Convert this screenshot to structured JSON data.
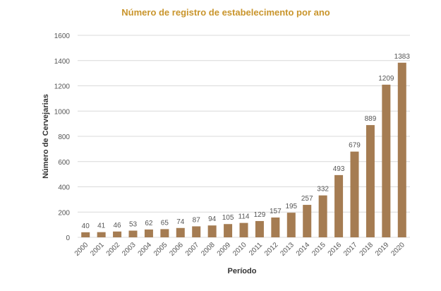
{
  "chart_data": {
    "type": "bar",
    "title": "Número de registro de estabelecimento por ano",
    "xlabel": "Período",
    "ylabel": "Número de Cervejarias",
    "ylim": [
      0,
      1600
    ],
    "yticks": [
      0,
      200,
      400,
      600,
      800,
      1000,
      1200,
      1400,
      1600
    ],
    "grid": true,
    "categories": [
      "2000",
      "2001",
      "2002",
      "2003",
      "2004",
      "2005",
      "2006",
      "2007",
      "2008",
      "2009",
      "2010",
      "2011",
      "2012",
      "2013",
      "2014",
      "2015",
      "2016",
      "2017",
      "2018",
      "2019",
      "2020"
    ],
    "values": [
      40,
      41,
      46,
      53,
      62,
      65,
      74,
      87,
      94,
      105,
      114,
      129,
      157,
      195,
      257,
      332,
      493,
      679,
      889,
      1209,
      1383
    ]
  },
  "colors": {
    "bar": "#a57c52",
    "title": "#c9952c",
    "text": "#555555",
    "grid": "#d9d9d9"
  }
}
